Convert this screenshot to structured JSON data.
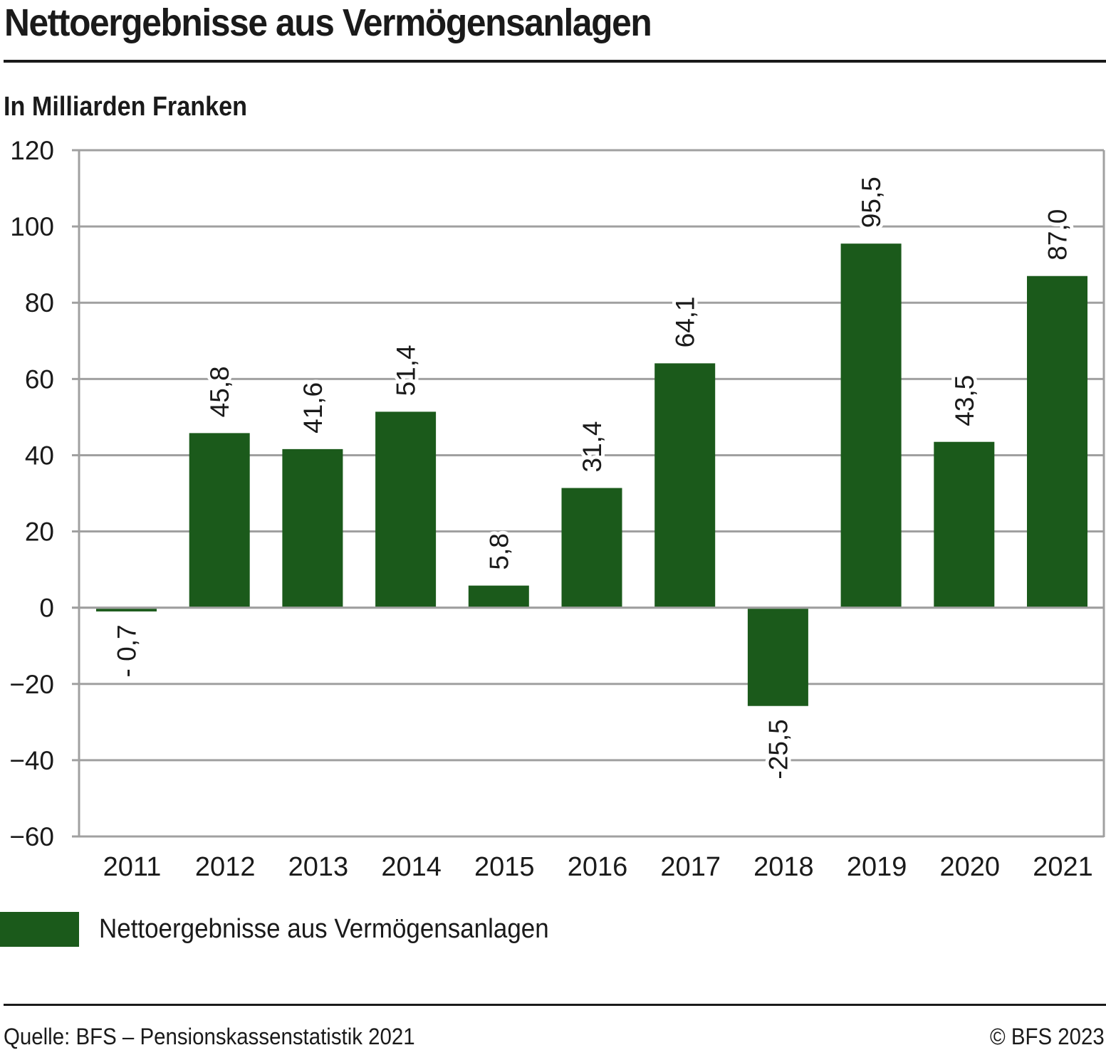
{
  "header": {
    "title": "Nettoergebnisse aus Vermögensanlagen",
    "subtitle": "In Milliarden Franken"
  },
  "footer": {
    "source": "Quelle: BFS – Pensionskassenstatistik 2021",
    "copyright": "© BFS 2023"
  },
  "colors": {
    "bar": "#1b5a1b",
    "grid": "#a0a0a0",
    "text": "#1a1a1a"
  },
  "chart_data": {
    "type": "bar",
    "title": "Nettoergebnisse aus Vermögensanlagen",
    "subtitle": "In Milliarden Franken",
    "xlabel": "",
    "ylabel": "In Milliarden Franken",
    "categories": [
      "2011",
      "2012",
      "2013",
      "2014",
      "2015",
      "2016",
      "2017",
      "2018",
      "2019",
      "2020",
      "2021"
    ],
    "series": [
      {
        "name": "Nettoergebnisse aus Vermögensanlagen",
        "values": [
          -0.7,
          45.8,
          41.6,
          51.4,
          5.8,
          31.4,
          64.1,
          -25.5,
          95.5,
          43.5,
          87.0
        ],
        "labels": [
          "- 0,7",
          "45,8",
          "41,6",
          "51,4",
          "5,8",
          "31,4",
          "64,1",
          "-25,5",
          "95,5",
          "43,5",
          "87,0"
        ]
      }
    ],
    "ylim": [
      -60,
      120
    ],
    "yticks": [
      120,
      100,
      80,
      60,
      40,
      20,
      0,
      -20,
      -40,
      -60
    ],
    "ytick_labels": [
      "120",
      "100",
      "80",
      "60",
      "40",
      "20",
      "0",
      "−20",
      "−40",
      "−60"
    ],
    "grid": true,
    "legend": {
      "position": "bottom-left",
      "entries": [
        "Nettoergebnisse aus Vermögensanlagen"
      ]
    },
    "data_labels": "rotated vertical, above positive bars / below negative bars"
  }
}
